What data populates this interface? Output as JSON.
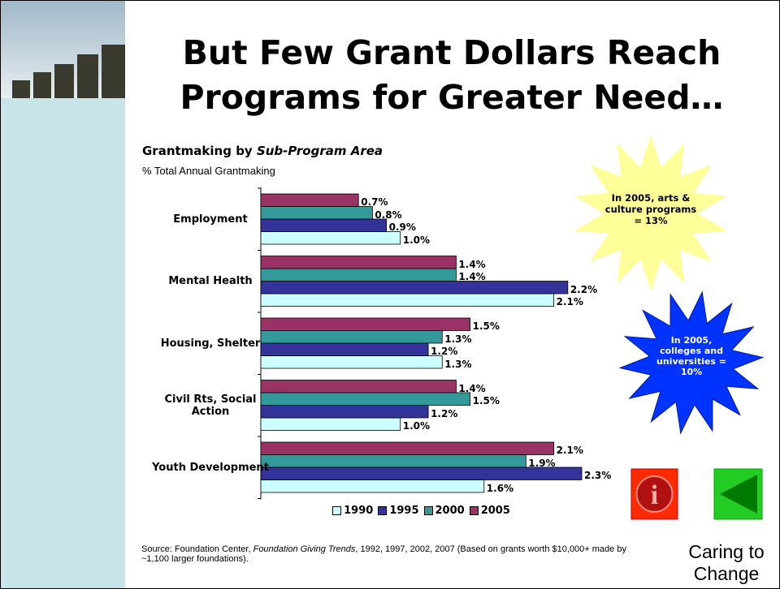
{
  "header": {
    "title_line1": "But Few Grant Dollars Reach",
    "title_line2": "Programs for Greater Need…"
  },
  "chart_data": {
    "type": "bar",
    "orientation": "horizontal",
    "title": "Grantmaking by",
    "title_italic": "Sub-Program Area",
    "subtitle": "% Total Annual Grantmaking",
    "categories": [
      "Employment",
      "Mental Health",
      "Housing, Shelter",
      "Civil Rts, Social Action",
      "Youth Development"
    ],
    "series": [
      {
        "name": "1990",
        "color": "#ccffff",
        "values": [
          1.0,
          2.1,
          1.3,
          1.0,
          1.6
        ],
        "value_labels": [
          "1.0%",
          "2.1%",
          "1.3%",
          "1.0%",
          "1.6%"
        ]
      },
      {
        "name": "1995",
        "color": "#333399",
        "values": [
          0.9,
          2.2,
          1.2,
          1.2,
          2.3
        ],
        "value_labels": [
          "0.9%",
          "2.2%",
          "1.2%",
          "1.2%",
          "2.3%"
        ]
      },
      {
        "name": "2000",
        "color": "#339999",
        "values": [
          0.8,
          1.4,
          1.3,
          1.5,
          1.9
        ],
        "value_labels": [
          "0.8%",
          "1.4%",
          "1.3%",
          "1.5%",
          "1.9%"
        ]
      },
      {
        "name": "2005",
        "color": "#993366",
        "values": [
          0.7,
          1.4,
          1.5,
          1.4,
          2.1
        ],
        "value_labels": [
          "0.7%",
          "1.4%",
          "1.5%",
          "1.4%",
          "2.1%"
        ]
      }
    ]
  },
  "annotations": [
    "In 2005, arts & culture programs = 13%",
    "In 2005, colleges and universities = 10%"
  ],
  "source": {
    "prefix": "Source:  Foundation Center,",
    "italic": "Foundation Giving Trends",
    "suffix": ", 1992, 1997, 2002, 2007 (Based on grants worth $10,000+ made by ~1,100 larger foundations)."
  },
  "footer": "Caring to Change"
}
